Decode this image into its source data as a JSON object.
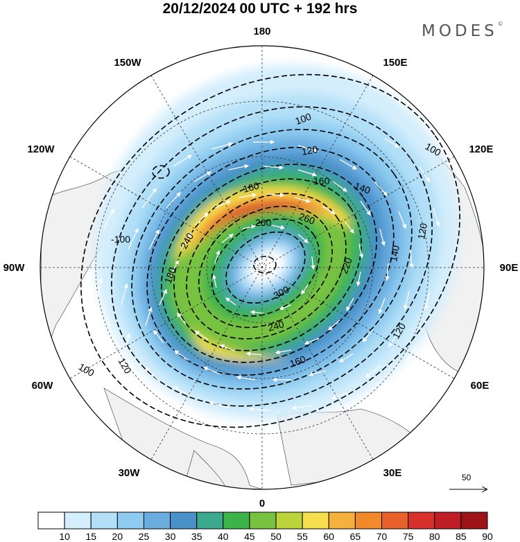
{
  "title": "20/12/2024  00 UTC  + 192 hrs",
  "brand": "MODES",
  "brand_mark": "©",
  "longitude_labels": {
    "lon180": "180",
    "lon150W": "150W",
    "lon150E": "150E",
    "lon120W": "120W",
    "lon120E": "120E",
    "lon90W": "90W",
    "lon90E": "90E",
    "lon60W": "60W",
    "lon60E": "60E",
    "lon30W": "30W",
    "lon30E": "30E",
    "lon0": "0"
  },
  "contour_labels": {
    "c100_nw": "100",
    "c100_ne": "100",
    "c100_w": "-100",
    "c100_sw": "100",
    "c120_n": "120",
    "c120_e": "120",
    "c120_se": "120",
    "c120_sw": "120",
    "c140_ne": "140",
    "c140_e": "140",
    "c160_nw": "160",
    "c160_ne": "160",
    "c160_s": "160",
    "c180_w": "180",
    "c220_e": "220",
    "c240_w": "240",
    "c240_s": "240",
    "c260_n": "260",
    "c260_c": "260",
    "c300_c": "300"
  },
  "vector_scale": {
    "value": "50"
  },
  "colorbar": {
    "labels": [
      "10",
      "15",
      "20",
      "25",
      "30",
      "35",
      "40",
      "45",
      "50",
      "55",
      "60",
      "65",
      "70",
      "75",
      "80",
      "85",
      "90"
    ],
    "colors": [
      "#ffffff",
      "#d4eefc",
      "#b3e0f8",
      "#8ecbf0",
      "#6aaee0",
      "#4a90c9",
      "#3ca88e",
      "#3cb44a",
      "#78c242",
      "#bcd43c",
      "#f6df4c",
      "#f6b03c",
      "#f28a2c",
      "#e8602a",
      "#d8302c",
      "#c01e26",
      "#9c1418"
    ]
  }
}
